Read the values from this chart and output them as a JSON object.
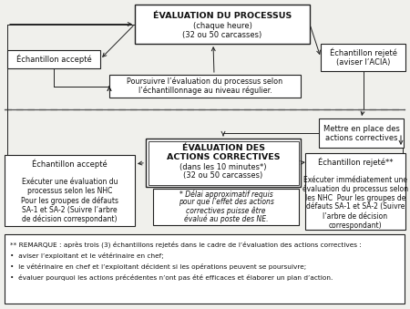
{
  "bg_color": "#f0f0ec",
  "box_fill": "#ffffff",
  "box_edge": "#222222",
  "boxes": {
    "eval_proc": {
      "text_bold": "ÉVALUATION DU PROCESSUS",
      "text_normal": "(chaque heure)\n(32 ou 50 carcasses)"
    },
    "accept_top": {
      "text": "Échantillon accepté"
    },
    "reject_top": {
      "text": "Échantillon rejeté\n(aviser l’ACIA)"
    },
    "poursuivre": {
      "text": "Poursuivre l’évaluation du processus selon\nl’échantillonnage au niveau régulier."
    },
    "mettre": {
      "text": "Mettre en place des\nactions correctives"
    },
    "eval_cor_bold": {
      "text": "ÉVALUATION DES\nACTIONS CORRECTIVES"
    },
    "eval_cor_normal": {
      "text": "(dans les 10 minutes*)\n(32 ou 50 carcasses)"
    },
    "note": {
      "text": "* Délai approximatif requis\npour que l’effet des actions\ncorrectives puisse être\névalué au poste des NE."
    },
    "accept_bot_title": {
      "text": "Échantillon accepté"
    },
    "accept_bot_body": {
      "text": "Exécuter une évaluation du\nprocessus selon les NHC\nPour les groupes de défauts\nSA-1 et SA-2 (Suivre l’arbre\nde décision correspondant)"
    },
    "reject_bot_title": {
      "text": "Échantillon rejeté**"
    },
    "reject_bot_body": {
      "text": "Exécuter immédiatement une\névaluation du processus selon\nles NHC  Pour les groupes de\ndéfauts SA-1 et SA-2 (Suivre\nl’arbre de décision\ncorrespondant)"
    }
  },
  "remark_line0": "** REMARQUE : après trois (3) échantillons rejetés dans le cadre de l’évaluation des actions correctives :",
  "remark_line1": "•  aviser l’exploitant et le vétérinaire en chef;",
  "remark_line2": "•  le vétérinaire en chef et l’exploitant décident si les opérations peuvent se poursuivre;",
  "remark_line3": "•  évaluer pourquoi les actions précédentes n’ont pas été efficaces et élaborer un plan d’action."
}
